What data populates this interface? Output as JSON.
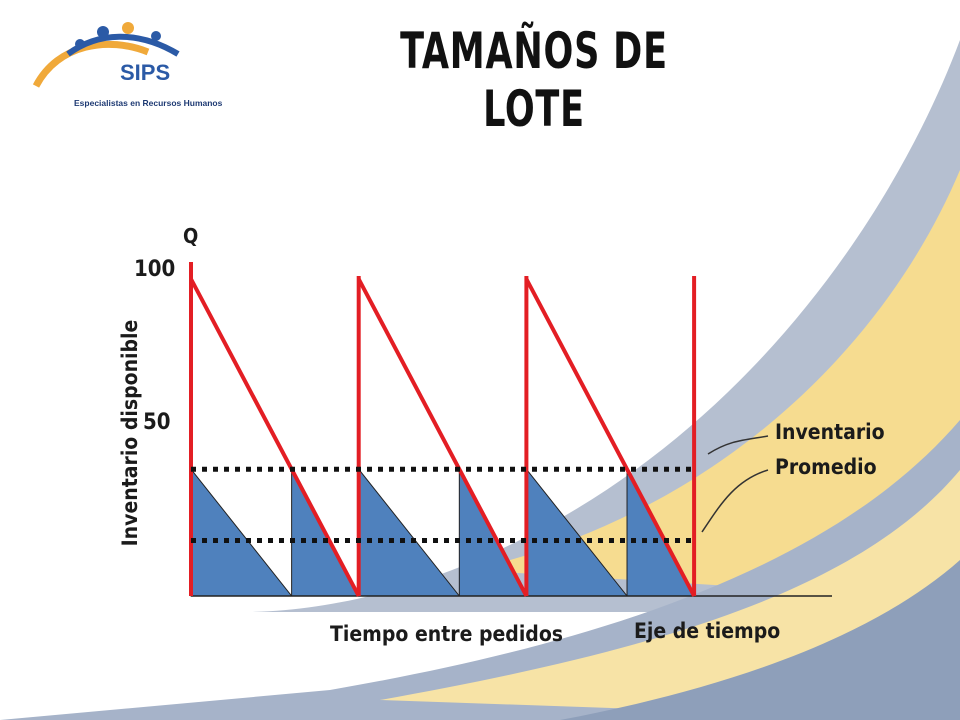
{
  "slide": {
    "title": "TAMAÑOS DE LOTE",
    "logo": {
      "brand": "SIPS",
      "tagline": "Especialistas en Recursos Humanos"
    }
  },
  "colors": {
    "sawtooth": "#e31e24",
    "area": "#4f81bd",
    "dotted": "#111111",
    "band_blue": "#9aa8bf",
    "band_yellow": "#f3d27a"
  },
  "chart_data": {
    "type": "sawtooth",
    "y_axis_symbol": "Q",
    "ylabel": "Inventario disponible",
    "ytick_labels": [
      "100",
      "50"
    ],
    "ylim": [
      0,
      100
    ],
    "cycles": 3,
    "start_level": 100,
    "end_level": 0,
    "average_lines": [
      40,
      17.5
    ],
    "x_labels": [
      "Tiempo entre pedidos",
      "Eje de tiempo"
    ],
    "annotation": [
      "Inventario",
      "Promedio"
    ]
  }
}
